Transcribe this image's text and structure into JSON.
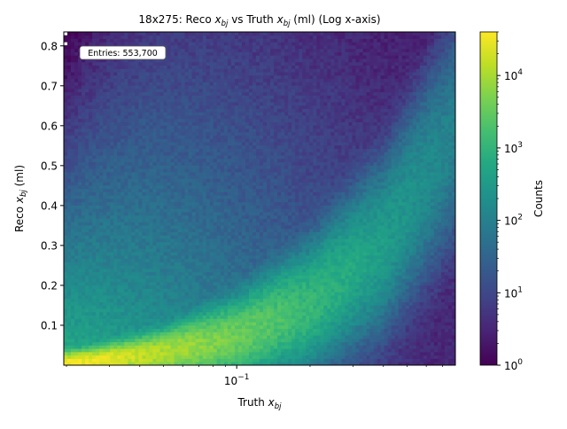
{
  "chart_data": {
    "type": "heatmap",
    "title": {
      "prefix": "18x275: Reco ",
      "var": "x",
      "sub": "bj",
      "mid": " vs Truth ",
      "suffix": " (ml) (Log x-axis)"
    },
    "xlabel": {
      "text": "Truth ",
      "var": "x",
      "sub": "bj"
    },
    "ylabel": {
      "text": "Reco ",
      "var": "x",
      "sub": "bj",
      "suffix": " (ml)"
    },
    "x_scale": "log",
    "x_range": [
      0.0195,
      0.79
    ],
    "x_ticks": [
      {
        "value": 0.1,
        "base": "10",
        "exp": "−1"
      }
    ],
    "y_range": [
      0.0,
      0.835
    ],
    "y_ticks": [
      0.1,
      0.2,
      0.3,
      0.4,
      0.5,
      0.6,
      0.7,
      0.8
    ],
    "colorbar": {
      "label": "Counts",
      "scale": "log",
      "range": [
        1,
        40000
      ],
      "ticks": [
        {
          "value": 1,
          "base": "10",
          "exp": "0"
        },
        {
          "value": 10,
          "base": "10",
          "exp": "1"
        },
        {
          "value": 100,
          "base": "10",
          "exp": "2"
        },
        {
          "value": 1000,
          "base": "10",
          "exp": "3"
        },
        {
          "value": 10000,
          "base": "10",
          "exp": "4"
        }
      ],
      "colormap": "viridis"
    },
    "annotation": "Entries: 553,700",
    "ridge": [
      {
        "x": 0.0195,
        "y": 0.003
      },
      {
        "x": 0.05,
        "y": 0.03
      },
      {
        "x": 0.1,
        "y": 0.07
      },
      {
        "x": 0.2,
        "y": 0.15
      },
      {
        "x": 0.4,
        "y": 0.3
      },
      {
        "x": 0.79,
        "y": 0.58
      }
    ],
    "peak_counts": 40000,
    "grid": false
  }
}
